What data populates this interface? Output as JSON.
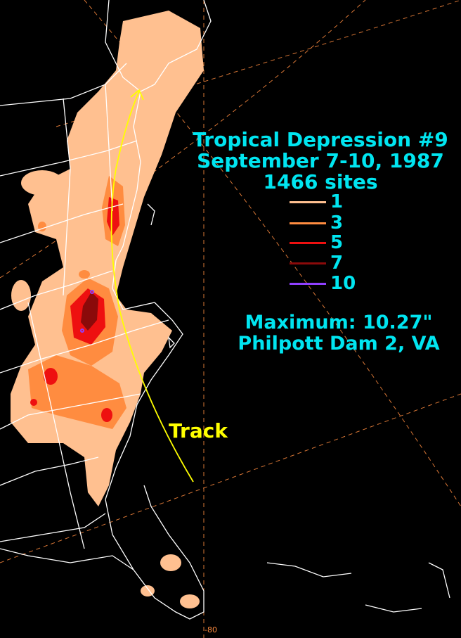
{
  "title": {
    "line1": "Tropical Depression #9",
    "line2": "September 7-10, 1987",
    "line3": "1466 sites"
  },
  "legend": [
    {
      "label": "1",
      "color": "#ffc090"
    },
    {
      "label": "3",
      "color": "#ff8c40"
    },
    {
      "label": "5",
      "color": "#ee1010"
    },
    {
      "label": "7",
      "color": "#8b0a0a"
    },
    {
      "label": "10",
      "color": "#9040ff"
    }
  ],
  "maximum": {
    "value_text": "Maximum: 10.27\"",
    "location": "Philpott Dam 2, VA"
  },
  "track_label": "Track",
  "longitude_label": "-80",
  "colors": {
    "background": "#000000",
    "borders": "#ffffff",
    "graticule": "#ff8c40",
    "track": "#ffff00",
    "text": "#00e5f0"
  }
}
